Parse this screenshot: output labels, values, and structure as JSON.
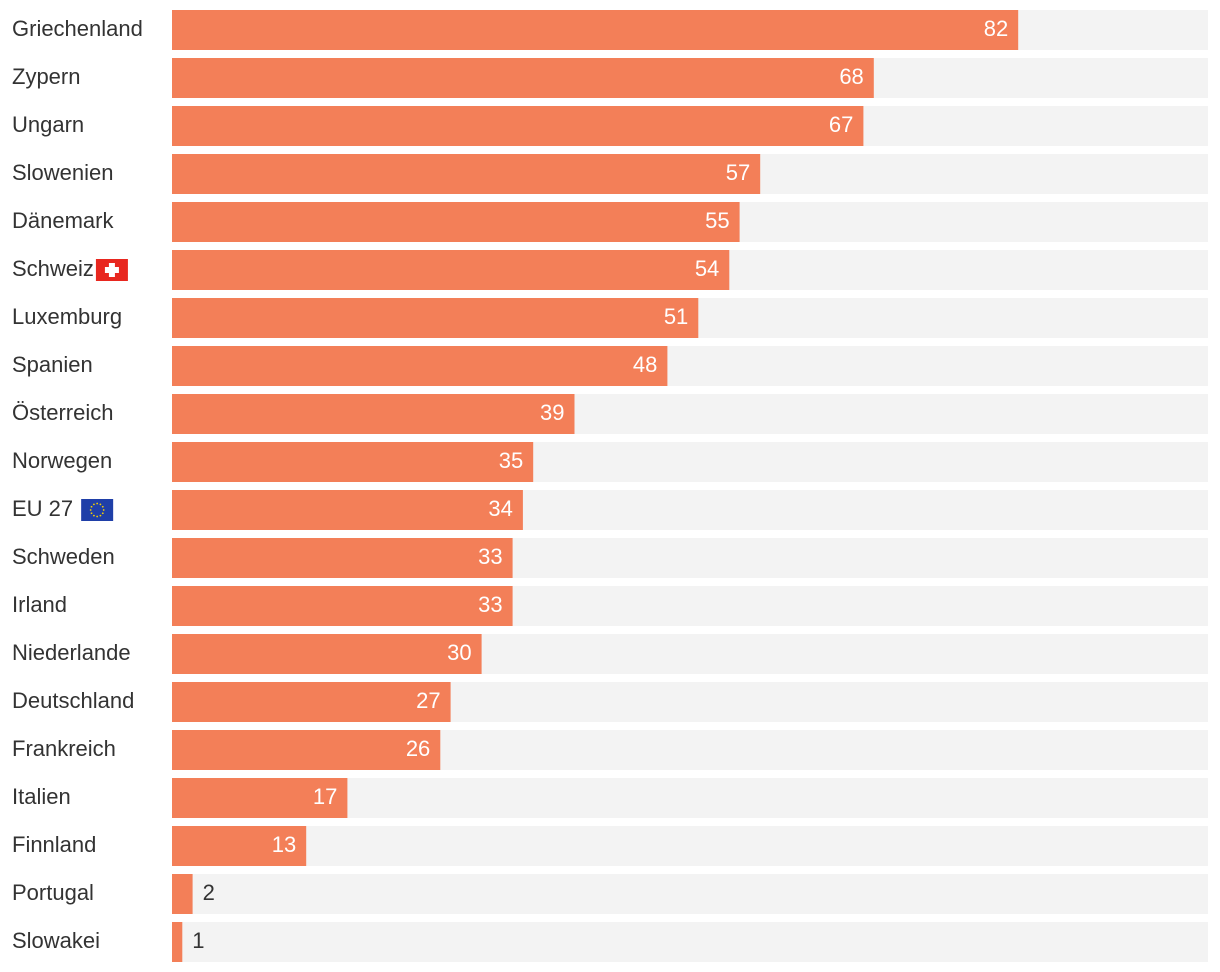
{
  "colors": {
    "bar": "#f37f58",
    "track": "#f3f3f3",
    "label": "#333333",
    "value_inside": "#ffffff",
    "value_outside": "#333333"
  },
  "chart_data": {
    "type": "bar",
    "orientation": "horizontal",
    "title": "",
    "xlabel": "",
    "ylabel": "",
    "xlim": [
      0,
      100
    ],
    "grid": false,
    "legend": "none",
    "data_labels": true,
    "categories": [
      "Griechenland",
      "Zypern",
      "Ungarn",
      "Slowenien",
      "Dänemark",
      "Schweiz",
      "Luxemburg",
      "Spanien",
      "Österreich",
      "Norwegen",
      "EU 27",
      "Schweden",
      "Irland",
      "Niederlande",
      "Deutschland",
      "Frankreich",
      "Italien",
      "Finnland",
      "Portugal",
      "Slowakei"
    ],
    "values": [
      82,
      68,
      67,
      57,
      55,
      54,
      51,
      48,
      39,
      35,
      34,
      33,
      33,
      30,
      27,
      26,
      17,
      13,
      2,
      1
    ],
    "flags": {
      "Schweiz": "swiss-flag-icon",
      "EU 27": "eu-flag-icon"
    }
  }
}
